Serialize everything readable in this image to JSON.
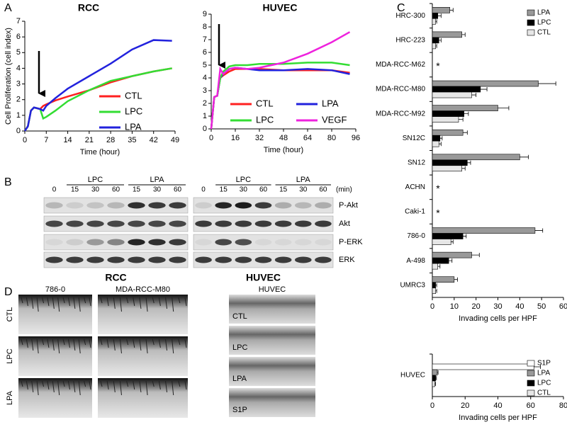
{
  "panel_labels": [
    "A",
    "B",
    "C",
    "D"
  ],
  "chart_data": [
    {
      "type": "line",
      "title": "RCC",
      "ylabel": "Cell Proliferation (cell index)",
      "xlabel": "Time (hour)",
      "x": [
        0,
        1,
        2,
        3,
        4,
        5,
        6,
        7,
        10,
        14,
        21,
        28,
        35,
        42,
        48
      ],
      "xlim": [
        0,
        49
      ],
      "xticks": [
        0,
        7,
        14,
        21,
        28,
        35,
        42,
        49
      ],
      "ylim": [
        0,
        7
      ],
      "yticks": [
        0,
        1,
        2,
        3,
        4,
        5,
        6,
        7
      ],
      "series": [
        {
          "name": "CTL",
          "color": "#ff2020",
          "values": [
            0,
            0.3,
            1.3,
            1.5,
            1.45,
            1.4,
            1.6,
            1.7,
            1.95,
            2.2,
            2.6,
            3.1,
            3.5,
            3.8,
            4.0
          ]
        },
        {
          "name": "LPC",
          "color": "#33dd33",
          "values": [
            0,
            0.3,
            1.3,
            1.5,
            1.45,
            1.4,
            0.8,
            0.9,
            1.3,
            1.9,
            2.6,
            3.2,
            3.5,
            3.8,
            4.0
          ]
        },
        {
          "name": "LPA",
          "color": "#2222dd",
          "values": [
            0,
            0.3,
            1.3,
            1.5,
            1.45,
            1.4,
            1.3,
            1.6,
            2.1,
            2.7,
            3.5,
            4.3,
            5.2,
            5.8,
            5.75
          ]
        }
      ]
    },
    {
      "type": "line",
      "title": "HUVEC",
      "xlabel": "Time (hour)",
      "x": [
        0,
        2,
        4,
        6,
        8,
        12,
        16,
        24,
        32,
        48,
        64,
        80,
        92
      ],
      "xlim": [
        0,
        96
      ],
      "xticks": [
        0,
        16,
        32,
        48,
        64,
        80,
        96
      ],
      "ylim": [
        0,
        9
      ],
      "yticks": [
        0,
        1,
        2,
        3,
        4,
        5,
        6,
        7,
        8,
        9
      ],
      "series": [
        {
          "name": "CTL",
          "color": "#ff2020",
          "values": [
            0,
            2.5,
            2.6,
            4.0,
            4.2,
            4.5,
            4.7,
            4.7,
            4.7,
            4.6,
            4.6,
            4.6,
            4.4
          ]
        },
        {
          "name": "LPA",
          "color": "#2222dd",
          "values": [
            0,
            2.5,
            2.6,
            4.0,
            4.3,
            4.7,
            4.8,
            4.7,
            4.6,
            4.6,
            4.7,
            4.6,
            4.3
          ]
        },
        {
          "name": "LPC",
          "color": "#33dd33",
          "values": [
            0,
            2.5,
            2.6,
            4.0,
            4.5,
            4.9,
            5.0,
            5.0,
            5.1,
            5.1,
            5.2,
            5.2,
            5.0
          ]
        },
        {
          "name": "VEGF",
          "color": "#ee22dd",
          "values": [
            0,
            2.5,
            2.6,
            4.7,
            4.3,
            4.7,
            4.8,
            4.7,
            4.8,
            5.2,
            5.9,
            6.8,
            7.6
          ]
        }
      ]
    },
    {
      "type": "hbar",
      "xlabel": "Invading cells per HPF",
      "asterisk": "*",
      "categories": [
        "HRC-300",
        "HRC-223",
        "MDA-RCC-M62",
        "MDA-RCC-M80",
        "MDA-RCC-M92",
        "SN12C",
        "SN12",
        "ACHN",
        "Caki-1",
        "786-0",
        "A-498",
        "UMRC3"
      ],
      "xlim": [
        0,
        60
      ],
      "xticks": [
        0,
        10,
        20,
        30,
        40,
        50,
        60
      ],
      "series": [
        {
          "name": "LPA",
          "color": "#999999",
          "values": [
            8,
            13.5,
            null,
            48.5,
            30,
            14,
            40,
            null,
            null,
            47,
            18,
            10
          ],
          "errors": [
            1.5,
            1.5,
            null,
            8,
            5,
            2,
            4,
            null,
            null,
            3.5,
            3.5,
            1.5
          ]
        },
        {
          "name": "LPC",
          "color": "#000000",
          "values": [
            2.5,
            3,
            null,
            22,
            14.5,
            3.5,
            16,
            null,
            null,
            14,
            7.5,
            1.5
          ],
          "errors": [
            1.5,
            1,
            null,
            3,
            2,
            1,
            1.5,
            null,
            null,
            1.5,
            1.5,
            0.5
          ]
        },
        {
          "name": "CTL",
          "color": "#e6e6e6",
          "values": [
            1.5,
            1.5,
            null,
            18,
            12,
            3,
            13.5,
            null,
            null,
            8.5,
            2.5,
            1.5
          ],
          "errors": [
            0.5,
            0.5,
            null,
            2,
            2,
            1,
            1.5,
            null,
            null,
            1,
            1,
            0.5
          ]
        }
      ]
    },
    {
      "type": "hbar",
      "xlabel": "Invading cells per HPF",
      "categories": [
        "HUVEC"
      ],
      "xlim": [
        0,
        80
      ],
      "xticks": [
        0,
        20,
        40,
        60,
        80
      ],
      "series": [
        {
          "name": "S1P",
          "color": "#ffffff",
          "values": [
            62
          ],
          "errors": [
            4
          ]
        },
        {
          "name": "LPA",
          "color": "#999999",
          "values": [
            3
          ],
          "errors": [
            0.5
          ]
        },
        {
          "name": "LPC",
          "color": "#000000",
          "values": [
            2
          ],
          "errors": [
            0.5
          ]
        },
        {
          "name": "CTL",
          "color": "#e6e6e6",
          "values": [
            1.5
          ],
          "errors": [
            0.5
          ]
        }
      ]
    }
  ],
  "blots": [
    {
      "cell": "RCC",
      "groups": [
        "LPC",
        "LPA"
      ],
      "times": [
        "0",
        "15",
        "30",
        "60",
        "15",
        "30",
        "60"
      ]
    },
    {
      "cell": "HUVEC",
      "groups": [
        "LPC",
        "LPA"
      ],
      "times": [
        "0",
        "15",
        "30",
        "60",
        "15",
        "30",
        "60"
      ]
    }
  ],
  "blot_unit": "(min)",
  "blot_rows": [
    "P-Akt",
    "Akt",
    "P-ERK",
    "ERK"
  ],
  "micrographs": {
    "rcc": {
      "columns": [
        "786-0",
        "MDA-RCC-M80"
      ],
      "rows": [
        "CTL",
        "LPC",
        "LPA"
      ]
    },
    "huvec": {
      "title": "HUVEC",
      "rows": [
        "CTL",
        "LPC",
        "LPA",
        "S1P"
      ]
    }
  }
}
